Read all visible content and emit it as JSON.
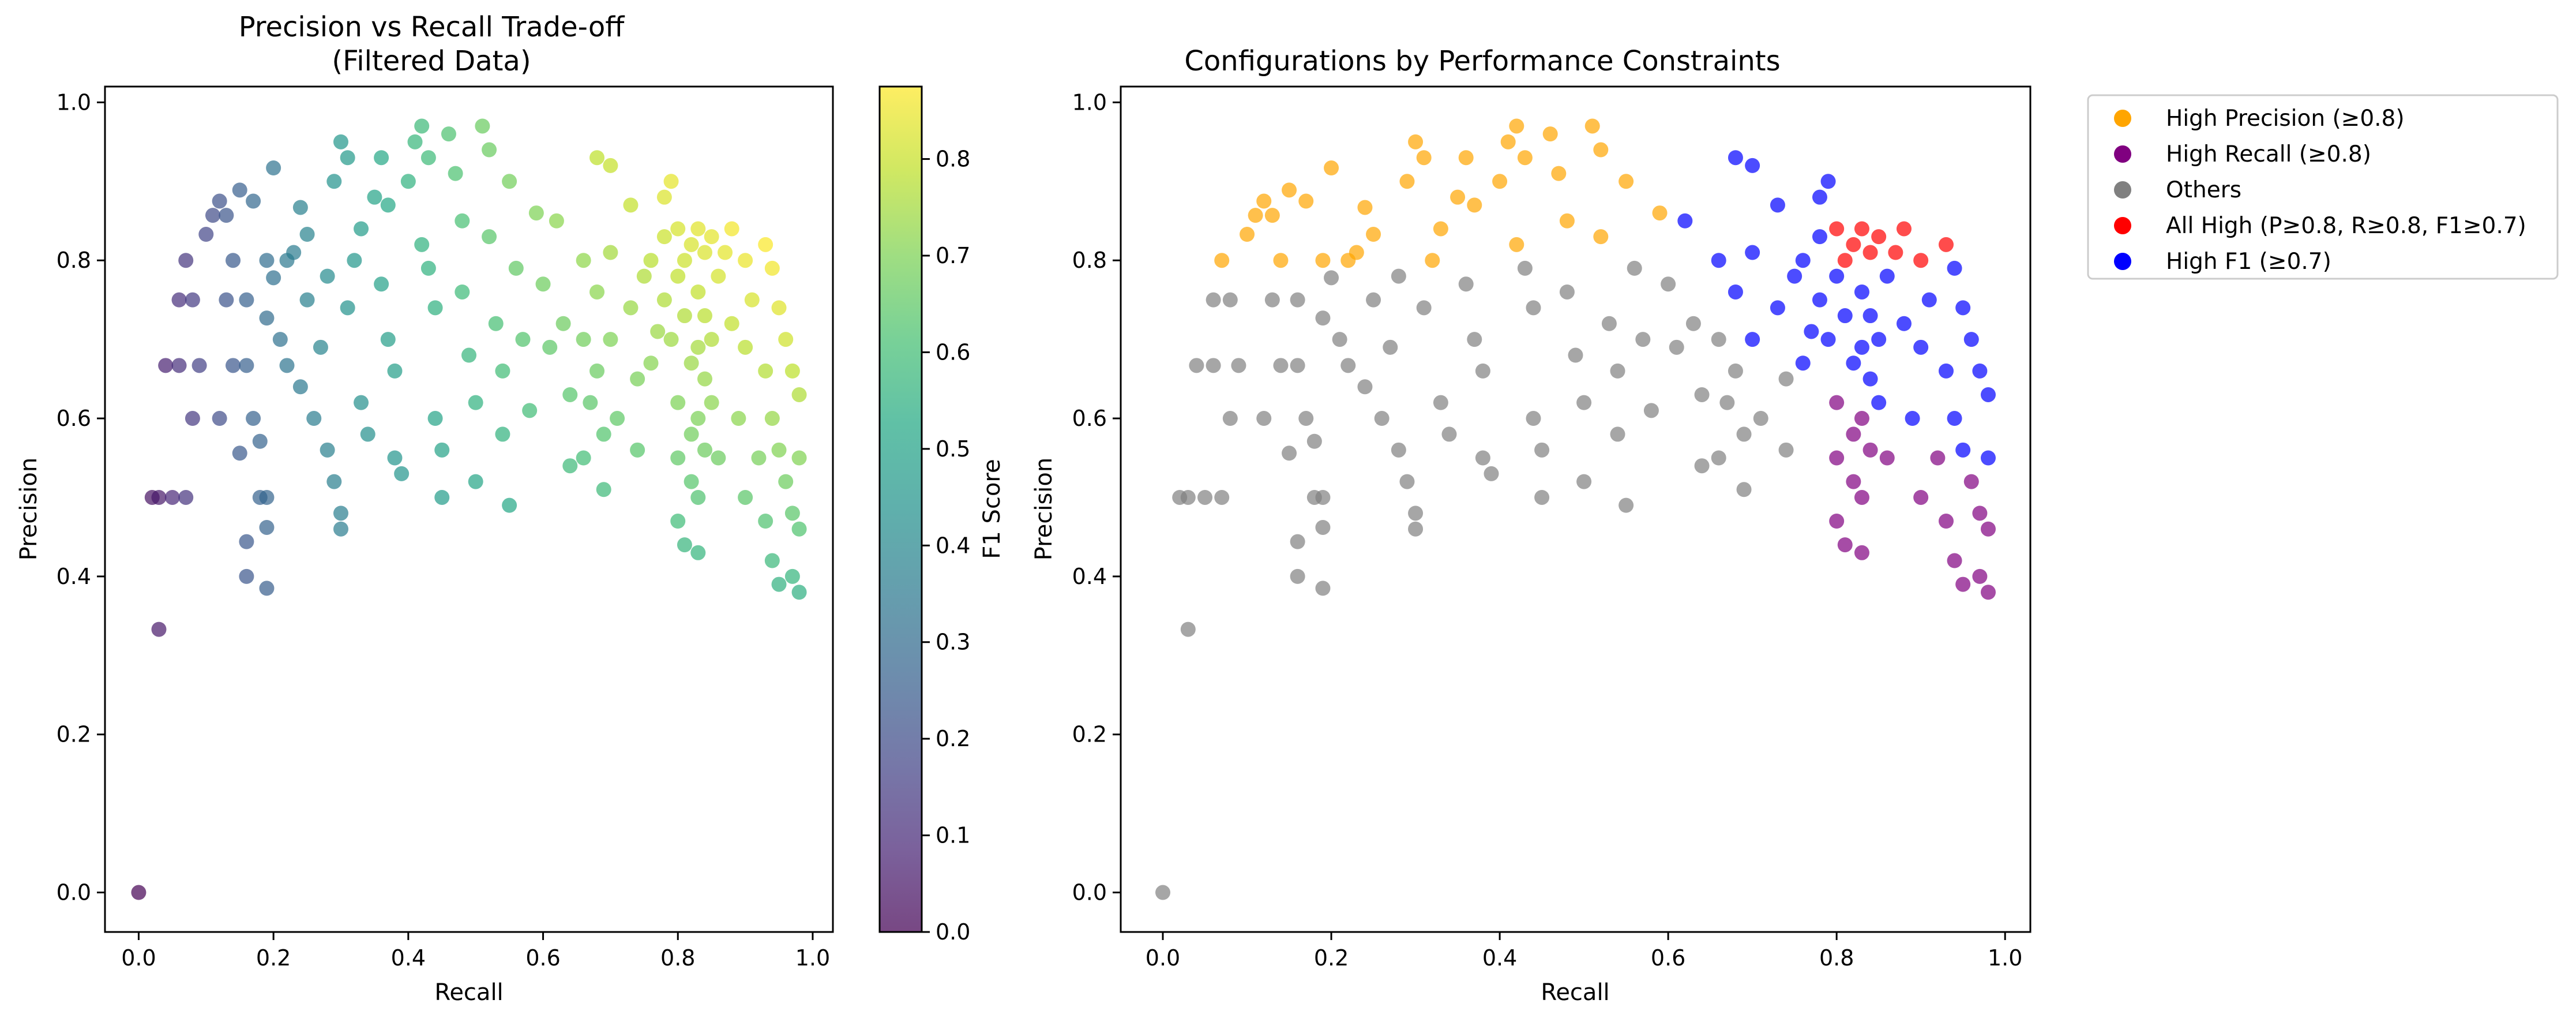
{
  "figure": {
    "background": "#ffffff"
  },
  "chart_data": [
    {
      "type": "scatter",
      "title": "Precision vs Recall Trade-off\n(Filtered Data)",
      "xlabel": "Recall",
      "ylabel": "Precision",
      "xlim": [
        -0.05,
        1.03
      ],
      "ylim": [
        -0.05,
        1.02
      ],
      "xticks": [
        "0.0",
        "0.2",
        "0.4",
        "0.6",
        "0.8",
        "1.0"
      ],
      "yticks": [
        "0.0",
        "0.2",
        "0.4",
        "0.6",
        "0.8",
        "1.0"
      ],
      "grid": false,
      "colormap": "viridis",
      "marker_alpha": 0.7,
      "colorbar": {
        "label": "F1 Score",
        "range": [
          0.0,
          0.875
        ],
        "ticks": [
          "0.0",
          "0.1",
          "0.2",
          "0.3",
          "0.4",
          "0.5",
          "0.6",
          "0.7",
          "0.8"
        ]
      },
      "points_source": "shared_points",
      "color_by": "F1 Score"
    },
    {
      "type": "scatter",
      "title": "Configurations by Performance Constraints",
      "xlabel": "Recall",
      "ylabel": "Precision",
      "xlim": [
        -0.05,
        1.03
      ],
      "ylim": [
        -0.05,
        1.02
      ],
      "xticks": [
        "0.0",
        "0.2",
        "0.4",
        "0.6",
        "0.8",
        "1.0"
      ],
      "yticks": [
        "0.0",
        "0.2",
        "0.4",
        "0.6",
        "0.8",
        "1.0"
      ],
      "grid": false,
      "marker_alpha": 0.7,
      "legend_position": "outside upper right",
      "series": [
        {
          "name": "High Precision (≥0.8)",
          "color": "#ffa500",
          "rule": "P>=0.8"
        },
        {
          "name": "High Recall (≥0.8)",
          "color": "#800080",
          "rule": "R>=0.8"
        },
        {
          "name": "Others",
          "color": "#808080",
          "rule": "otherwise"
        },
        {
          "name": "All High (P≥0.8, R≥0.8, F1≥0.7)",
          "color": "#ff0000",
          "rule": "P>=0.8 and R>=0.8 and F1>=0.7"
        },
        {
          "name": "High F1 (≥0.7)",
          "color": "#0000ff",
          "rule": "F1>=0.7"
        }
      ],
      "points_source": "shared_points"
    }
  ],
  "shared_points": [
    [
      0.0,
      0.0
    ],
    [
      0.02,
      0.5
    ],
    [
      0.03,
      0.5
    ],
    [
      0.05,
      0.5
    ],
    [
      0.07,
      0.5
    ],
    [
      0.03,
      0.333
    ],
    [
      0.04,
      0.667
    ],
    [
      0.06,
      0.667
    ],
    [
      0.06,
      0.75
    ],
    [
      0.07,
      0.8
    ],
    [
      0.08,
      0.75
    ],
    [
      0.08,
      0.6
    ],
    [
      0.09,
      0.667
    ],
    [
      0.1,
      0.833
    ],
    [
      0.11,
      0.857
    ],
    [
      0.12,
      0.875
    ],
    [
      0.13,
      0.857
    ],
    [
      0.14,
      0.8
    ],
    [
      0.12,
      0.6
    ],
    [
      0.13,
      0.75
    ],
    [
      0.14,
      0.667
    ],
    [
      0.16,
      0.75
    ],
    [
      0.15,
      0.889
    ],
    [
      0.17,
      0.875
    ],
    [
      0.16,
      0.667
    ],
    [
      0.17,
      0.6
    ],
    [
      0.19,
      0.8
    ],
    [
      0.18,
      0.5
    ],
    [
      0.19,
      0.5
    ],
    [
      0.2,
      0.917
    ],
    [
      0.16,
      0.444
    ],
    [
      0.16,
      0.4
    ],
    [
      0.19,
      0.462
    ],
    [
      0.19,
      0.385
    ],
    [
      0.15,
      0.556
    ],
    [
      0.18,
      0.571
    ],
    [
      0.19,
      0.727
    ],
    [
      0.2,
      0.778
    ],
    [
      0.21,
      0.7
    ],
    [
      0.22,
      0.667
    ],
    [
      0.22,
      0.8
    ],
    [
      0.23,
      0.81
    ],
    [
      0.24,
      0.867
    ],
    [
      0.25,
      0.833
    ],
    [
      0.25,
      0.75
    ],
    [
      0.24,
      0.64
    ],
    [
      0.26,
      0.6
    ],
    [
      0.27,
      0.69
    ],
    [
      0.28,
      0.78
    ],
    [
      0.28,
      0.56
    ],
    [
      0.29,
      0.52
    ],
    [
      0.29,
      0.9
    ],
    [
      0.3,
      0.95
    ],
    [
      0.31,
      0.93
    ],
    [
      0.3,
      0.48
    ],
    [
      0.3,
      0.46
    ],
    [
      0.31,
      0.74
    ],
    [
      0.32,
      0.8
    ],
    [
      0.33,
      0.84
    ],
    [
      0.33,
      0.62
    ],
    [
      0.34,
      0.58
    ],
    [
      0.35,
      0.88
    ],
    [
      0.36,
      0.93
    ],
    [
      0.37,
      0.87
    ],
    [
      0.36,
      0.77
    ],
    [
      0.37,
      0.7
    ],
    [
      0.38,
      0.66
    ],
    [
      0.38,
      0.55
    ],
    [
      0.39,
      0.53
    ],
    [
      0.4,
      0.9
    ],
    [
      0.41,
      0.95
    ],
    [
      0.42,
      0.97
    ],
    [
      0.43,
      0.93
    ],
    [
      0.42,
      0.82
    ],
    [
      0.43,
      0.79
    ],
    [
      0.44,
      0.74
    ],
    [
      0.44,
      0.6
    ],
    [
      0.45,
      0.56
    ],
    [
      0.45,
      0.5
    ],
    [
      0.46,
      0.96
    ],
    [
      0.47,
      0.91
    ],
    [
      0.48,
      0.85
    ],
    [
      0.48,
      0.76
    ],
    [
      0.49,
      0.68
    ],
    [
      0.5,
      0.62
    ],
    [
      0.5,
      0.52
    ],
    [
      0.51,
      0.97
    ],
    [
      0.52,
      0.94
    ],
    [
      0.52,
      0.83
    ],
    [
      0.53,
      0.72
    ],
    [
      0.54,
      0.66
    ],
    [
      0.54,
      0.58
    ],
    [
      0.55,
      0.49
    ],
    [
      0.55,
      0.9
    ],
    [
      0.56,
      0.79
    ],
    [
      0.57,
      0.7
    ],
    [
      0.58,
      0.61
    ],
    [
      0.59,
      0.86
    ],
    [
      0.6,
      0.77
    ],
    [
      0.61,
      0.69
    ],
    [
      0.62,
      0.85
    ],
    [
      0.63,
      0.72
    ],
    [
      0.64,
      0.63
    ],
    [
      0.64,
      0.54
    ],
    [
      0.66,
      0.8
    ],
    [
      0.66,
      0.7
    ],
    [
      0.66,
      0.55
    ],
    [
      0.67,
      0.62
    ],
    [
      0.68,
      0.93
    ],
    [
      0.68,
      0.76
    ],
    [
      0.68,
      0.66
    ],
    [
      0.69,
      0.58
    ],
    [
      0.69,
      0.51
    ],
    [
      0.7,
      0.92
    ],
    [
      0.7,
      0.81
    ],
    [
      0.7,
      0.7
    ],
    [
      0.71,
      0.6
    ],
    [
      0.73,
      0.87
    ],
    [
      0.73,
      0.74
    ],
    [
      0.74,
      0.65
    ],
    [
      0.74,
      0.56
    ],
    [
      0.75,
      0.78
    ],
    [
      0.76,
      0.8
    ],
    [
      0.76,
      0.67
    ],
    [
      0.77,
      0.71
    ],
    [
      0.78,
      0.88
    ],
    [
      0.78,
      0.83
    ],
    [
      0.78,
      0.75
    ],
    [
      0.79,
      0.9
    ],
    [
      0.79,
      0.7
    ],
    [
      0.8,
      0.84
    ],
    [
      0.8,
      0.78
    ],
    [
      0.8,
      0.62
    ],
    [
      0.8,
      0.55
    ],
    [
      0.8,
      0.47
    ],
    [
      0.81,
      0.44
    ],
    [
      0.81,
      0.8
    ],
    [
      0.81,
      0.73
    ],
    [
      0.82,
      0.82
    ],
    [
      0.82,
      0.67
    ],
    [
      0.82,
      0.58
    ],
    [
      0.82,
      0.52
    ],
    [
      0.83,
      0.84
    ],
    [
      0.83,
      0.76
    ],
    [
      0.83,
      0.69
    ],
    [
      0.83,
      0.6
    ],
    [
      0.83,
      0.5
    ],
    [
      0.83,
      0.43
    ],
    [
      0.84,
      0.81
    ],
    [
      0.84,
      0.73
    ],
    [
      0.84,
      0.65
    ],
    [
      0.84,
      0.56
    ],
    [
      0.85,
      0.83
    ],
    [
      0.85,
      0.7
    ],
    [
      0.85,
      0.62
    ],
    [
      0.86,
      0.78
    ],
    [
      0.86,
      0.55
    ],
    [
      0.87,
      0.81
    ],
    [
      0.88,
      0.84
    ],
    [
      0.88,
      0.72
    ],
    [
      0.89,
      0.6
    ],
    [
      0.9,
      0.8
    ],
    [
      0.9,
      0.69
    ],
    [
      0.9,
      0.5
    ],
    [
      0.91,
      0.75
    ],
    [
      0.92,
      0.55
    ],
    [
      0.93,
      0.82
    ],
    [
      0.93,
      0.66
    ],
    [
      0.93,
      0.47
    ],
    [
      0.94,
      0.79
    ],
    [
      0.94,
      0.6
    ],
    [
      0.94,
      0.42
    ],
    [
      0.95,
      0.74
    ],
    [
      0.95,
      0.56
    ],
    [
      0.95,
      0.39
    ],
    [
      0.96,
      0.7
    ],
    [
      0.96,
      0.52
    ],
    [
      0.97,
      0.66
    ],
    [
      0.97,
      0.48
    ],
    [
      0.97,
      0.4
    ],
    [
      0.98,
      0.63
    ],
    [
      0.98,
      0.55
    ],
    [
      0.98,
      0.38
    ],
    [
      0.98,
      0.46
    ]
  ]
}
